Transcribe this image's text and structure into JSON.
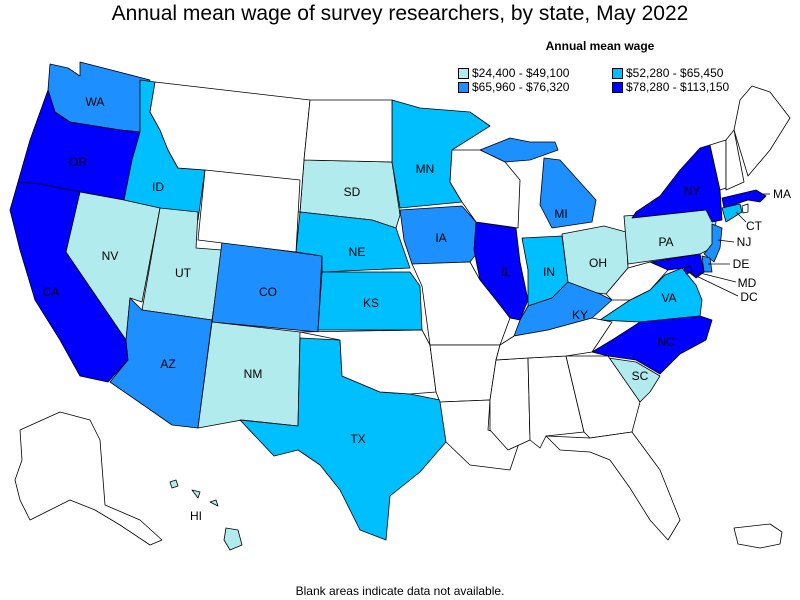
{
  "title": "Annual mean wage of survey researchers, by state, May 2022",
  "legend": {
    "title": "Annual mean wage",
    "items": [
      {
        "label": "$24,400 - $49,100",
        "color": "#b2ebee"
      },
      {
        "label": "$52,280 - $65,450",
        "color": "#00bfff"
      },
      {
        "label": "$65,960 - $76,320",
        "color": "#1e8fff"
      },
      {
        "label": "$78,280 - $113,150",
        "color": "#0000ff"
      }
    ]
  },
  "footnote": "Blank areas indicate data not available.",
  "states": {
    "WA": {
      "label": "WA",
      "bin": 2
    },
    "OR": {
      "label": "OR",
      "bin": 3
    },
    "CA": {
      "label": "CA",
      "bin": 3
    },
    "ID": {
      "label": "ID",
      "bin": 1
    },
    "NV": {
      "label": "NV",
      "bin": 0
    },
    "UT": {
      "label": "UT",
      "bin": 0
    },
    "AZ": {
      "label": "AZ",
      "bin": 2
    },
    "CO": {
      "label": "CO",
      "bin": 2
    },
    "NM": {
      "label": "NM",
      "bin": 0
    },
    "SD": {
      "label": "SD",
      "bin": 0
    },
    "NE": {
      "label": "NE",
      "bin": 1
    },
    "KS": {
      "label": "KS",
      "bin": 1
    },
    "TX": {
      "label": "TX",
      "bin": 1
    },
    "MN": {
      "label": "MN",
      "bin": 1
    },
    "IA": {
      "label": "IA",
      "bin": 2
    },
    "IL": {
      "label": "IL",
      "bin": 3
    },
    "MI": {
      "label": "MI",
      "bin": 2
    },
    "IN": {
      "label": "IN",
      "bin": 1
    },
    "OH": {
      "label": "OH",
      "bin": 0
    },
    "KY": {
      "label": "KY",
      "bin": 2
    },
    "PA": {
      "label": "PA",
      "bin": 0
    },
    "NY": {
      "label": "NY",
      "bin": 3
    },
    "VA": {
      "label": "VA",
      "bin": 1
    },
    "NC": {
      "label": "NC",
      "bin": 3
    },
    "SC": {
      "label": "SC",
      "bin": 0
    },
    "MA": {
      "label": "MA",
      "bin": 3
    },
    "CT": {
      "label": "CT",
      "bin": 1
    },
    "NJ": {
      "label": "NJ",
      "bin": 2
    },
    "DE": {
      "label": "DE",
      "bin": 2
    },
    "MD": {
      "label": "MD",
      "bin": 3
    },
    "DC": {
      "label": "DC",
      "bin": 3
    },
    "HI": {
      "label": "HI",
      "bin": 0
    }
  }
}
